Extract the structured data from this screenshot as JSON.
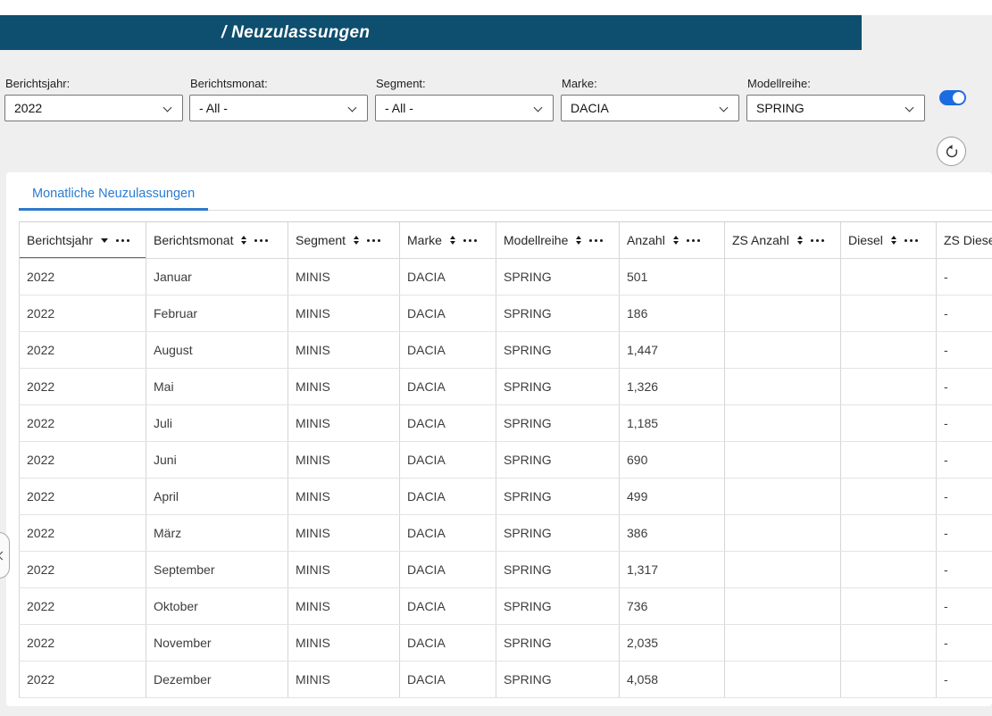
{
  "header": {
    "title": "/ Neuzulassungen",
    "bar_color": "#0e4e6e"
  },
  "filters": [
    {
      "id": "berichtsjahr",
      "label": "Berichtsjahr:",
      "value": "2022"
    },
    {
      "id": "berichtsmonat",
      "label": "Berichtsmonat:",
      "value": "- All -"
    },
    {
      "id": "segment",
      "label": "Segment:",
      "value": "- All -"
    },
    {
      "id": "marke",
      "label": "Marke:",
      "value": "DACIA"
    },
    {
      "id": "modellreihe",
      "label": "Modellreihe:",
      "value": "SPRING"
    }
  ],
  "view_toggle": {
    "state": "on",
    "color": "#1b6ce0"
  },
  "reset_button": {
    "icon": "undo-circular-arrow-icon"
  },
  "side_panel_handle": {
    "icon": "chevron-left-icon"
  },
  "tab": {
    "label": "Monatliche Neuzulassungen",
    "active": true,
    "color": "#2b7cd1"
  },
  "table": {
    "columns": [
      {
        "label": "Berichtsjahr",
        "sort": "desc",
        "sorted": true
      },
      {
        "label": "Berichtsmonat",
        "sort": "both"
      },
      {
        "label": "Segment",
        "sort": "both"
      },
      {
        "label": "Marke",
        "sort": "both"
      },
      {
        "label": "Modellreihe",
        "sort": "both"
      },
      {
        "label": "Anzahl",
        "sort": "both"
      },
      {
        "label": "ZS Anzahl",
        "sort": "both"
      },
      {
        "label": "Diesel",
        "sort": "both"
      },
      {
        "label": "ZS Diesel",
        "sort": "both"
      }
    ],
    "rows": [
      [
        "2022",
        "Januar",
        "MINIS",
        "DACIA",
        "SPRING",
        "501",
        "",
        "",
        "-"
      ],
      [
        "2022",
        "Februar",
        "MINIS",
        "DACIA",
        "SPRING",
        "186",
        "",
        "",
        "-"
      ],
      [
        "2022",
        "August",
        "MINIS",
        "DACIA",
        "SPRING",
        "1,447",
        "",
        "",
        "-"
      ],
      [
        "2022",
        "Mai",
        "MINIS",
        "DACIA",
        "SPRING",
        "1,326",
        "",
        "",
        "-"
      ],
      [
        "2022",
        "Juli",
        "MINIS",
        "DACIA",
        "SPRING",
        "1,185",
        "",
        "",
        "-"
      ],
      [
        "2022",
        "Juni",
        "MINIS",
        "DACIA",
        "SPRING",
        "690",
        "",
        "",
        "-"
      ],
      [
        "2022",
        "April",
        "MINIS",
        "DACIA",
        "SPRING",
        "499",
        "",
        "",
        "-"
      ],
      [
        "2022",
        "März",
        "MINIS",
        "DACIA",
        "SPRING",
        "386",
        "",
        "",
        "-"
      ],
      [
        "2022",
        "September",
        "MINIS",
        "DACIA",
        "SPRING",
        "1,317",
        "",
        "",
        "-"
      ],
      [
        "2022",
        "Oktober",
        "MINIS",
        "DACIA",
        "SPRING",
        "736",
        "",
        "",
        "-"
      ],
      [
        "2022",
        "November",
        "MINIS",
        "DACIA",
        "SPRING",
        "2,035",
        "",
        "",
        "-"
      ],
      [
        "2022",
        "Dezember",
        "MINIS",
        "DACIA",
        "SPRING",
        "4,058",
        "",
        "",
        "-"
      ]
    ]
  },
  "colors": {
    "appbar": "#0e4e6e",
    "page_background": "#efefef",
    "accent_blue": "#2e75c9",
    "tab_blue": "#2b7cd1",
    "toggle_blue": "#1b6ce0",
    "grid_line": "#d6d6d6",
    "row_line": "#e3e3e3"
  }
}
